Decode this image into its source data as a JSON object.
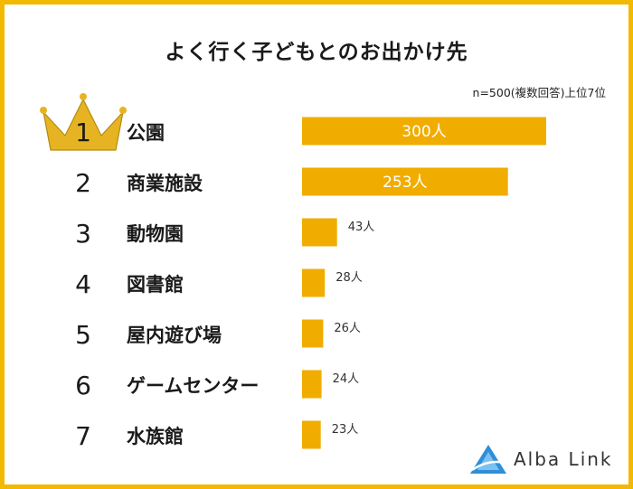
{
  "header": {
    "title": "よく行く子どもとのお出かけ先",
    "note": "n=500(複数回答)上位7位"
  },
  "brand": {
    "name": "Alba Link"
  },
  "colors": {
    "bar": "#f0ad00",
    "crown": "#e6b422",
    "border": "#f3b800"
  },
  "chart_data": {
    "type": "bar",
    "orientation": "horizontal",
    "ranks": [
      "1",
      "2",
      "3",
      "4",
      "5",
      "6",
      "7"
    ],
    "categories": [
      "公園",
      "商業施設",
      "動物園",
      "図書館",
      "屋内遊び場",
      "ゲームセンター",
      "水族館"
    ],
    "values": [
      300,
      253,
      43,
      28,
      26,
      24,
      23
    ],
    "value_labels": [
      "300人",
      "253人",
      "43人",
      "28人",
      "26人",
      "24人",
      "23人"
    ],
    "xlim": [
      0,
      300
    ],
    "grid": false,
    "legend": "none"
  }
}
